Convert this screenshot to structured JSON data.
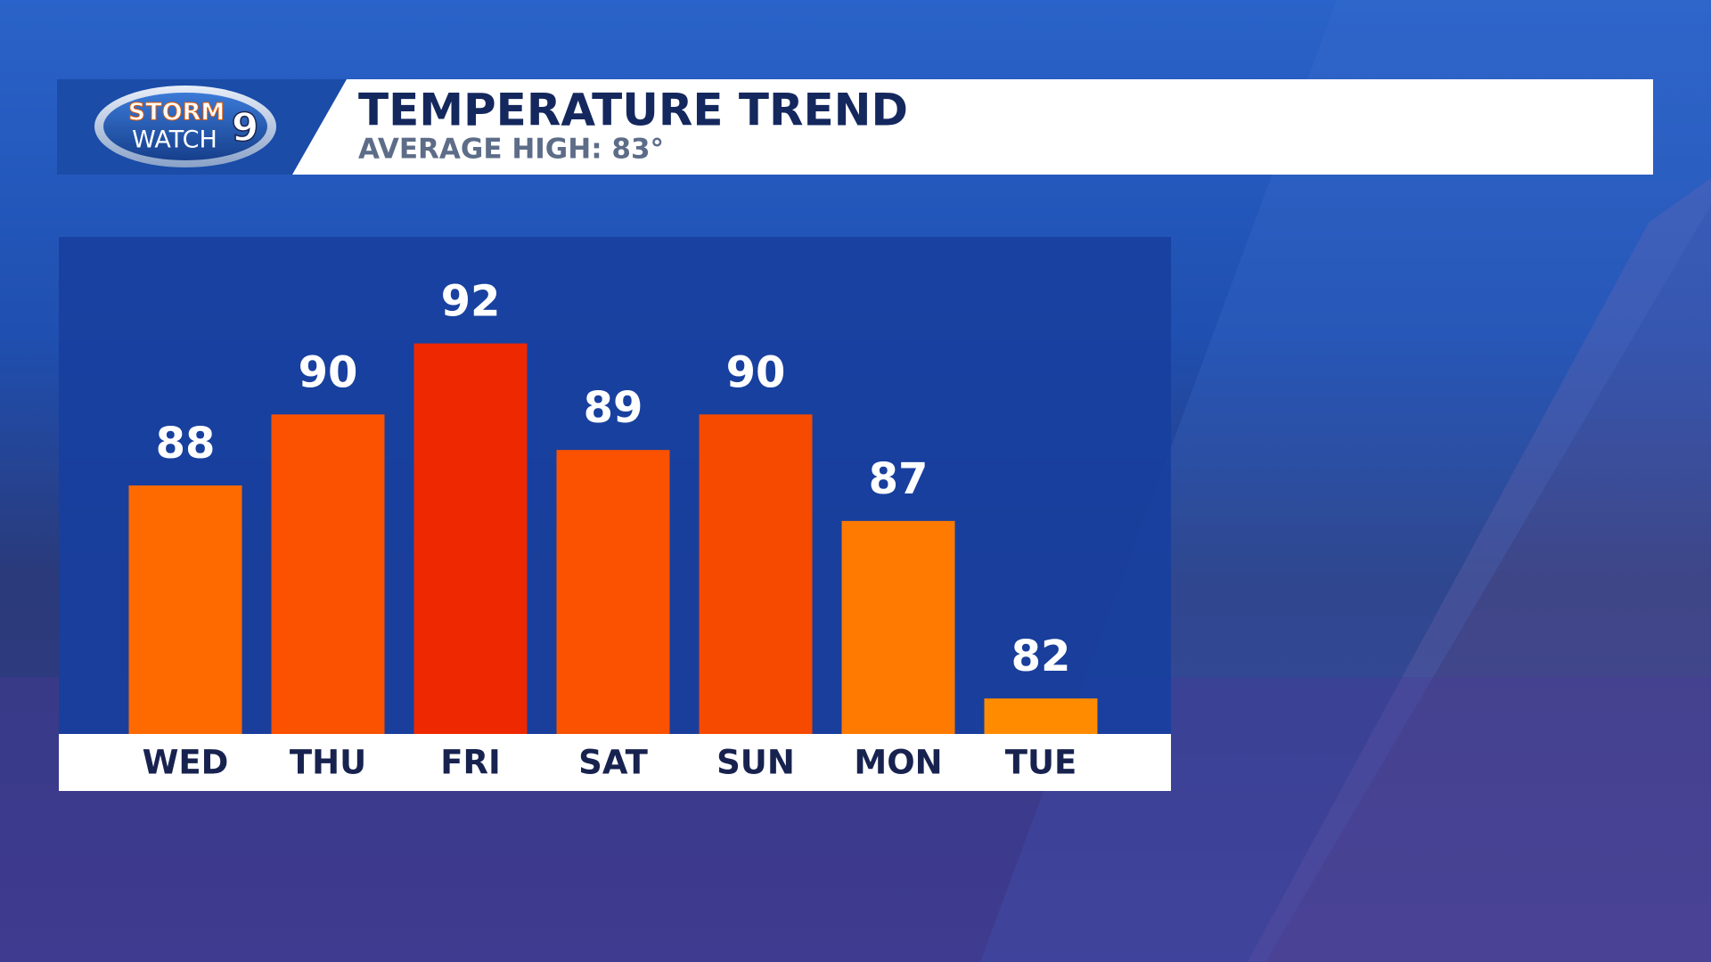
{
  "logo": {
    "top": "STORM",
    "bottom": "WATCH",
    "number": "9"
  },
  "chart_data": {
    "type": "bar",
    "title": "TEMPERATURE TREND",
    "subtitle": "AVERAGE HIGH: 83°",
    "categories": [
      "WED",
      "THU",
      "FRI",
      "SAT",
      "SUN",
      "MON",
      "TUE"
    ],
    "values": [
      88,
      90,
      92,
      89,
      90,
      87,
      82
    ],
    "colors": [
      "#ff6a00",
      "#fa5200",
      "#ee2800",
      "#fa5200",
      "#f54a00",
      "#ff7a00",
      "#ff8c00"
    ],
    "ylim": [
      81,
      95
    ]
  }
}
